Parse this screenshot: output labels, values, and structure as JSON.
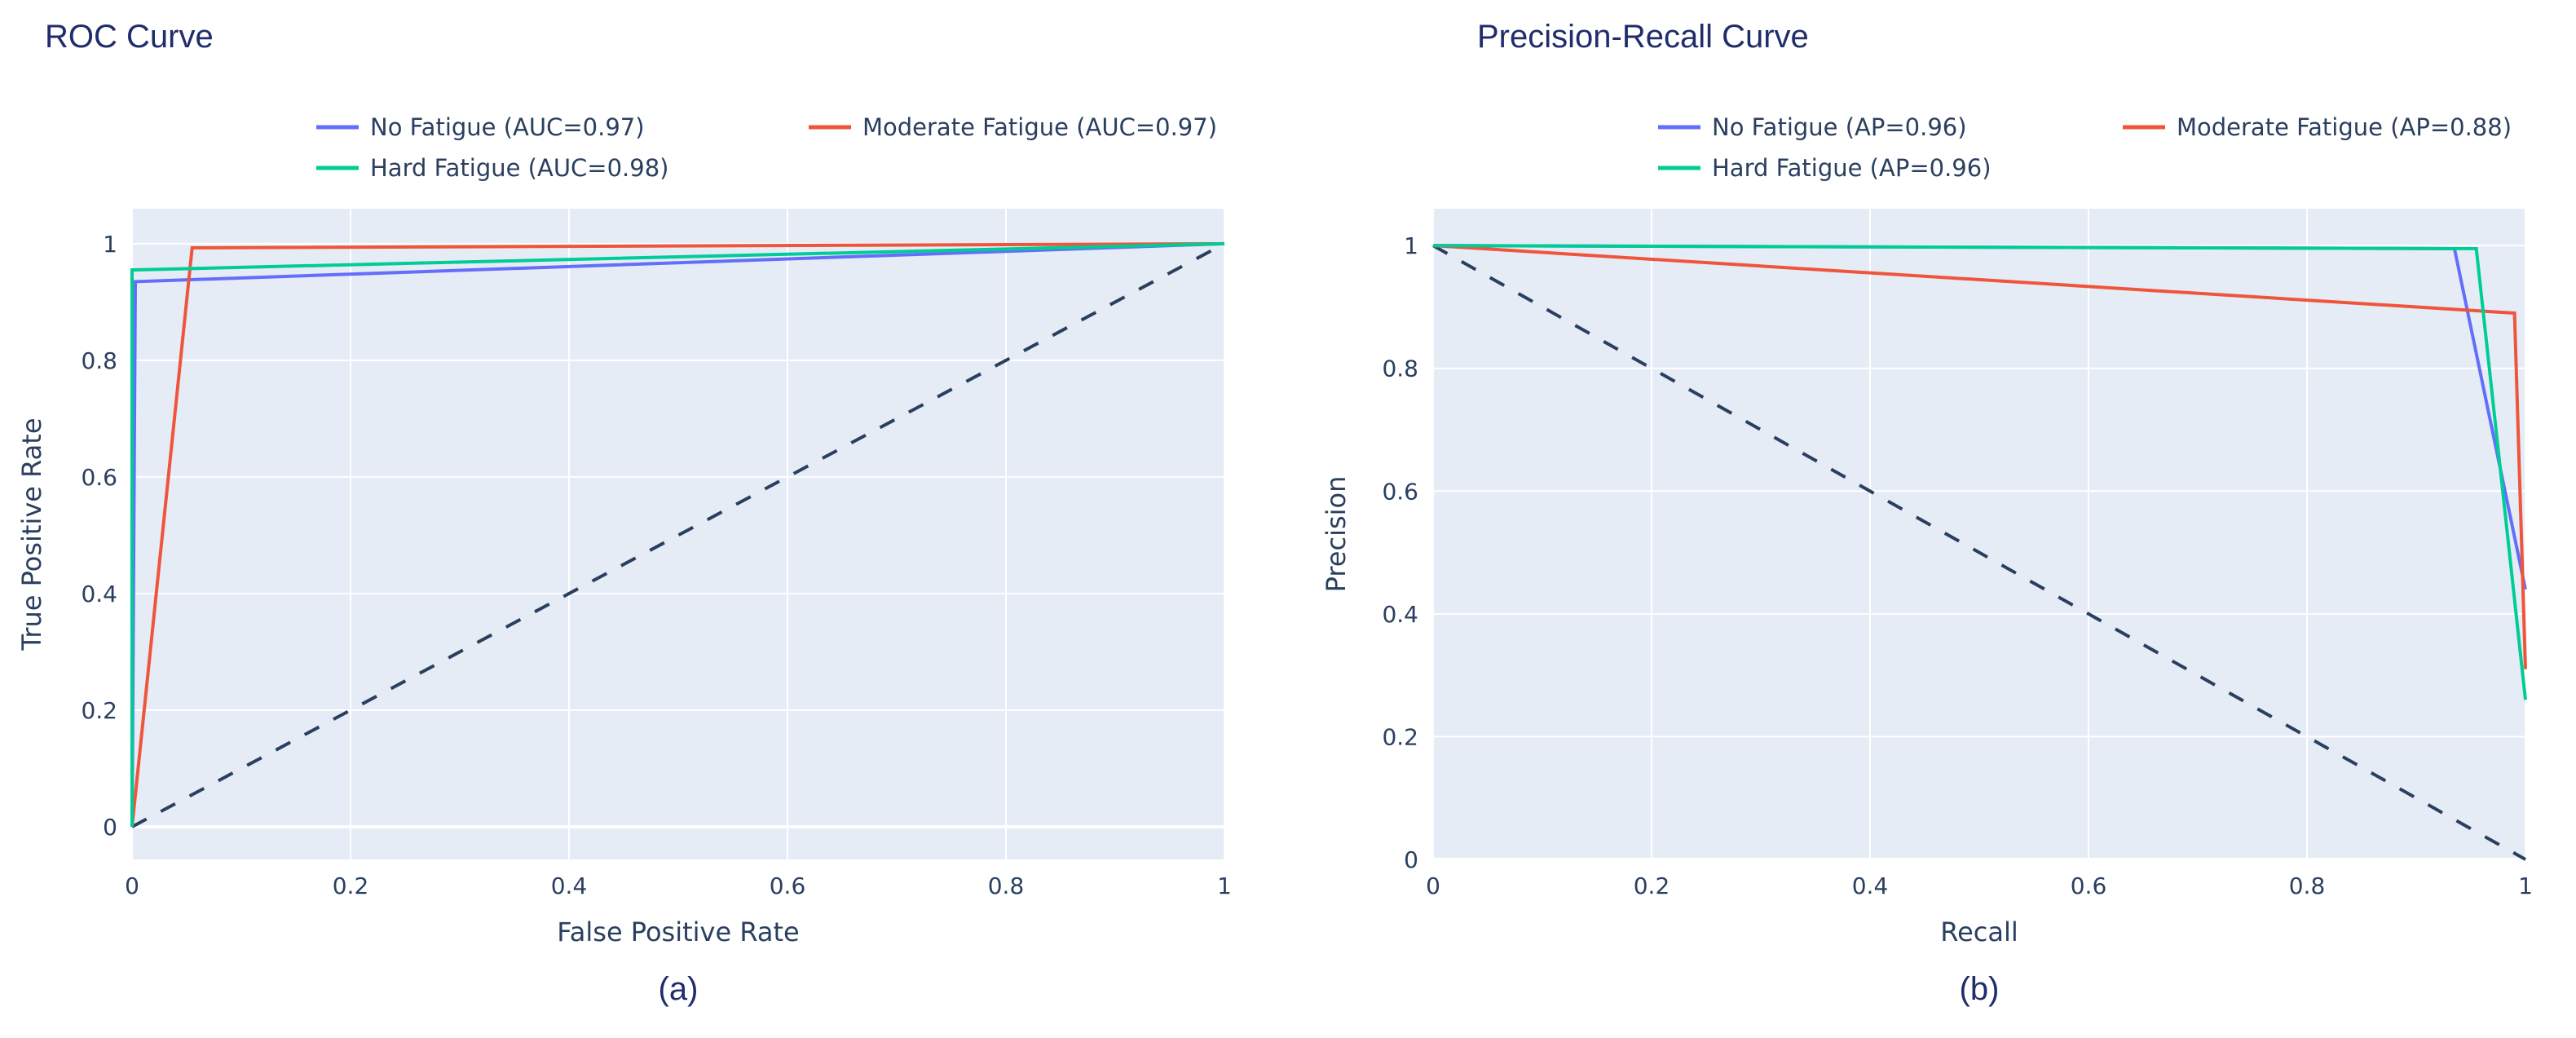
{
  "colors": {
    "no": "#636efa",
    "moderate": "#ef553b",
    "hard": "#00cc96",
    "baseline": "#2a3f5f",
    "plot_bg": "#e5ecf6",
    "grid": "#ffffff"
  },
  "chart_data": [
    {
      "type": "line",
      "title": "ROC Curve",
      "caption": "(a)",
      "xlabel": "False Positive Rate",
      "ylabel": "True Positive Rate",
      "xlim": [
        0,
        1
      ],
      "ylim": [
        -0.056,
        1.06
      ],
      "xticks": [
        0,
        0.2,
        0.4,
        0.6,
        0.8,
        1
      ],
      "xtick_labels": [
        "0",
        "0.2",
        "0.4",
        "0.6",
        "0.8",
        "1"
      ],
      "yticks": [
        0,
        0.2,
        0.4,
        0.6,
        0.8,
        1
      ],
      "ytick_labels": [
        "0",
        "0.2",
        "0.4",
        "0.6",
        "0.8",
        "1"
      ],
      "grid": true,
      "legend_position": "top",
      "series": [
        {
          "name": "No Fatigue (AUC=0.97)",
          "key": "no",
          "x": [
            0,
            0.003,
            1
          ],
          "y": [
            0,
            0.935,
            1
          ]
        },
        {
          "name": "Moderate Fatigue (AUC=0.97)",
          "key": "moderate",
          "x": [
            0,
            0.055,
            1
          ],
          "y": [
            0,
            0.993,
            1
          ]
        },
        {
          "name": "Hard Fatigue (AUC=0.98)",
          "key": "hard",
          "x": [
            0,
            0,
            1
          ],
          "y": [
            0,
            0.955,
            1
          ]
        }
      ],
      "baseline": {
        "x": [
          0,
          1
        ],
        "y": [
          0,
          1
        ]
      }
    },
    {
      "type": "line",
      "title": "Precision-Recall Curve",
      "caption": "(b)",
      "xlabel": "Recall",
      "ylabel": "Precision",
      "xlim": [
        0,
        1
      ],
      "ylim": [
        0,
        1.06
      ],
      "xticks": [
        0,
        0.2,
        0.4,
        0.6,
        0.8,
        1
      ],
      "xtick_labels": [
        "0",
        "0.2",
        "0.4",
        "0.6",
        "0.8",
        "1"
      ],
      "yticks": [
        0,
        0.2,
        0.4,
        0.6,
        0.8,
        1
      ],
      "ytick_labels": [
        "0",
        "0.2",
        "0.4",
        "0.6",
        "0.8",
        "1"
      ],
      "grid": true,
      "legend_position": "top",
      "series": [
        {
          "name": "No Fatigue (AP=0.96)",
          "key": "no",
          "x": [
            0,
            0.935,
            1
          ],
          "y": [
            1,
            0.995,
            0.44
          ]
        },
        {
          "name": "Moderate Fatigue (AP=0.88)",
          "key": "moderate",
          "x": [
            0,
            0.99,
            1
          ],
          "y": [
            1,
            0.89,
            0.31
          ]
        },
        {
          "name": "Hard Fatigue (AP=0.96)",
          "key": "hard",
          "x": [
            0,
            0.955,
            1
          ],
          "y": [
            1,
            0.995,
            0.26
          ]
        }
      ],
      "baseline": {
        "x": [
          0,
          1
        ],
        "y": [
          1,
          0
        ]
      }
    }
  ]
}
